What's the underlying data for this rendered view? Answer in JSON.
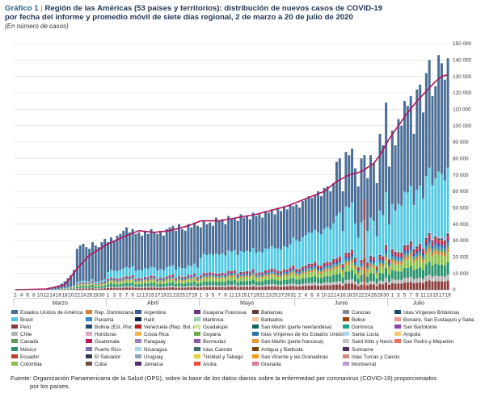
{
  "header": {
    "label": "Gráfico 1",
    "separator": "|",
    "title_line1": "Región de las Américas (53 países y territorios): distribución de nuevos casos de COVID-19",
    "title_line2": "por fecha del informe y promedio móvil de siete días regional, 2 de marzo a 20 de julio de 2020",
    "subtitle": "(En número de casos)"
  },
  "chart_data": {
    "type": "bar",
    "stacked": true,
    "title": "Región de las Américas (53 países y territorios): distribución de nuevos casos de COVID-19 por fecha del informe y promedio móvil de siete días regional, 2 de marzo a 20 de julio de 2020",
    "ylabel": "",
    "ylim": [
      0,
      150000
    ],
    "y_ticks": [
      0,
      10000,
      20000,
      30000,
      40000,
      50000,
      60000,
      70000,
      80000,
      90000,
      100000,
      110000,
      120000,
      130000,
      140000,
      150000
    ],
    "y_tick_labels": [
      "0",
      "10 000",
      "20 000",
      "30 000",
      "40 000",
      "50 000",
      "60 000",
      "70 000",
      "80 000",
      "90 000",
      "100 000",
      "110 000",
      "120 000",
      "130 000",
      "140 000",
      "150 000"
    ],
    "grid": true,
    "months": [
      {
        "label": "Marzo",
        "start": 0,
        "end": 29
      },
      {
        "label": "Abril",
        "start": 30,
        "end": 59
      },
      {
        "label": "Mayo",
        "start": 60,
        "end": 90
      },
      {
        "label": "Junio",
        "start": 91,
        "end": 120
      },
      {
        "label": "Julio",
        "start": 121,
        "end": 140
      }
    ],
    "x_tick_labels": [
      "2",
      "4",
      "6",
      "8",
      "10",
      "12",
      "14",
      "16",
      "18",
      "20",
      "22",
      "24",
      "26",
      "28",
      "30",
      "1",
      "3",
      "5",
      "7",
      "9",
      "11",
      "13",
      "15",
      "17",
      "19",
      "21",
      "23",
      "25",
      "27",
      "29",
      "1",
      "3",
      "5",
      "7",
      "9",
      "11",
      "13",
      "15",
      "17",
      "19",
      "21",
      "23",
      "25",
      "27",
      "29",
      "31",
      "2",
      "4",
      "6",
      "8",
      "10",
      "12",
      "14",
      "16",
      "18",
      "20",
      "22",
      "24",
      "26",
      "28",
      "30",
      "1",
      "3",
      "5",
      "7",
      "9",
      "11",
      "13",
      "15",
      "17",
      "19"
    ],
    "totals": [
      20,
      30,
      40,
      60,
      80,
      110,
      150,
      200,
      300,
      400,
      600,
      800,
      1200,
      1800,
      2600,
      3800,
      5200,
      7000,
      9000,
      12000,
      25000,
      27000,
      28000,
      26000,
      25000,
      29000,
      27000,
      26000,
      29000,
      31000,
      29000,
      32000,
      30000,
      33000,
      34000,
      36000,
      38000,
      35000,
      37000,
      34000,
      35000,
      33000,
      36000,
      34000,
      37000,
      35000,
      34000,
      36000,
      33000,
      37000,
      38000,
      39000,
      36000,
      40000,
      37000,
      36000,
      40000,
      38000,
      41000,
      39000,
      38000,
      42000,
      40000,
      41000,
      39000,
      44000,
      42000,
      43000,
      40000,
      45000,
      43000,
      44000,
      42000,
      46000,
      44000,
      45000,
      43000,
      47000,
      45000,
      46000,
      44000,
      48000,
      47000,
      49000,
      46000,
      50000,
      48000,
      51000,
      49000,
      52000,
      51000,
      52000,
      50000,
      54000,
      55000,
      57000,
      56000,
      58000,
      60000,
      57000,
      62000,
      63000,
      60000,
      65000,
      78000,
      80000,
      60000,
      84000,
      82000,
      86000,
      74000,
      63000,
      80000,
      82000,
      68000,
      82000,
      77000,
      65000,
      95000,
      88000,
      114000,
      75000,
      97000,
      88000,
      104000,
      100000,
      115000,
      112000,
      118000,
      95000,
      122000,
      125000,
      108000,
      132000,
      140000,
      118000,
      124000,
      143000,
      138000,
      128000,
      141000
    ],
    "annotations": {
      "cluster_near_june_23": 55000
    },
    "series": [
      {
        "name": "Estados Unidos de América",
        "color": "#4a6d96"
      },
      {
        "name": "Brasil",
        "color": "#52c9e2"
      },
      {
        "name": "Perú",
        "color": "#8a3a3a"
      },
      {
        "name": "Chile",
        "color": "#b3b3b3"
      },
      {
        "name": "Canadá",
        "color": "#5e9e5a"
      },
      {
        "name": "México",
        "color": "#27936a"
      },
      {
        "name": "Ecuador",
        "color": "#c0392b"
      },
      {
        "name": "Colombia",
        "color": "#8bc34a"
      },
      {
        "name": "Rep. Dominicana",
        "color": "#e07b39"
      },
      {
        "name": "Panamá",
        "color": "#2e86c1"
      },
      {
        "name": "Bolivia (Est. Plur. de)",
        "color": "#1f4e79"
      },
      {
        "name": "Honduras",
        "color": "#e6a3c8"
      },
      {
        "name": "Guatemala",
        "color": "#c2185b"
      },
      {
        "name": "Puerto Rico",
        "color": "#7b6fb3"
      },
      {
        "name": "El Salvador",
        "color": "#2c3e50"
      },
      {
        "name": "Cuba",
        "color": "#6d4c41"
      },
      {
        "name": "Argentina",
        "color": "#3a5ba0"
      },
      {
        "name": "Haití",
        "color": "#0b2545"
      },
      {
        "name": "Venezuela (Rep. Bol. de)",
        "color": "#b71c1c"
      },
      {
        "name": "Costa Rica",
        "color": "#f3b24b"
      },
      {
        "name": "Paraguay",
        "color": "#9c80c2"
      },
      {
        "name": "Nicaragua",
        "color": "#a7d7f0"
      },
      {
        "name": "Uruguay",
        "color": "#8fa8b8"
      },
      {
        "name": "Jamaica",
        "color": "#5b2c6f"
      },
      {
        "name": "Guayana Francesa",
        "color": "#6c3483"
      },
      {
        "name": "Martinica",
        "color": "#9ad1b0"
      },
      {
        "name": "Guadalupe",
        "color": "#d4e6a5"
      },
      {
        "name": "Guyana",
        "color": "#6aa84f"
      },
      {
        "name": "Bermudas",
        "color": "#8e5aa8"
      },
      {
        "name": "Islas Caimán",
        "color": "#3d6e70"
      },
      {
        "name": "Trinidad y Tabago",
        "color": "#e4d23a"
      },
      {
        "name": "Aruba",
        "color": "#e74c3c"
      },
      {
        "name": "Bahamas",
        "color": "#5d4037"
      },
      {
        "name": "Barbados",
        "color": "#f5c3a0"
      },
      {
        "name": "San Martín (parte neerlandesa)",
        "color": "#0e6655"
      },
      {
        "name": "Islas Vírgenes de los Estados Unidos",
        "color": "#2874a6"
      },
      {
        "name": "San Martín (parte francesa)",
        "color": "#f0932b"
      },
      {
        "name": "Antigua y Barbuda",
        "color": "#784212"
      },
      {
        "name": "San Vicente y las Granadinas",
        "color": "#f39c12"
      },
      {
        "name": "Granada",
        "color": "#e07b9a"
      },
      {
        "name": "Curazao",
        "color": "#7f8c8d"
      },
      {
        "name": "Belice",
        "color": "#a04000"
      },
      {
        "name": "Dominica",
        "color": "#17a589"
      },
      {
        "name": "Santa Lucía",
        "color": "#aed6f1"
      },
      {
        "name": "Saint Kitts y Nevis",
        "color": "#bdc3c7"
      },
      {
        "name": "Suriname",
        "color": "#512e5f"
      },
      {
        "name": "Islas Turcas y Caicos",
        "color": "#d98880"
      },
      {
        "name": "Montserrat",
        "color": "#c39bd3"
      },
      {
        "name": "Islas Vírgenes Británicas",
        "color": "#1b4f72"
      },
      {
        "name": "Bonaire, San Eustaquio y Saba",
        "color": "#f1948a"
      },
      {
        "name": "San Bartolomé",
        "color": "#8e44ad"
      },
      {
        "name": "Anguila",
        "color": "#f8c471"
      },
      {
        "name": "San Pedro y Miquelón",
        "color": "#ec7063"
      }
    ],
    "moving_average": {
      "name": "Promedio móvil de siete días",
      "color": "#b0145f",
      "points": [
        [
          0,
          0
        ],
        [
          10,
          500
        ],
        [
          16,
          3000
        ],
        [
          20,
          13000
        ],
        [
          24,
          21000
        ],
        [
          30,
          28000
        ],
        [
          36,
          33000
        ],
        [
          40,
          36000
        ],
        [
          45,
          35000
        ],
        [
          50,
          36000
        ],
        [
          56,
          39000
        ],
        [
          60,
          42000
        ],
        [
          66,
          42000
        ],
        [
          72,
          44000
        ],
        [
          78,
          46000
        ],
        [
          84,
          49000
        ],
        [
          88,
          51000
        ],
        [
          92,
          54000
        ],
        [
          96,
          57000
        ],
        [
          100,
          60000
        ],
        [
          104,
          66000
        ],
        [
          108,
          70000
        ],
        [
          112,
          72000
        ],
        [
          116,
          77000
        ],
        [
          118,
          82000
        ],
        [
          121,
          92000
        ],
        [
          124,
          100000
        ],
        [
          127,
          108000
        ],
        [
          130,
          115000
        ],
        [
          133,
          121000
        ],
        [
          136,
          127000
        ],
        [
          138,
          130000
        ],
        [
          140,
          131000
        ]
      ]
    }
  },
  "source": {
    "line1": "Fuente: Organización Panamericana de la Salud (OPS), sobre la base de los datos diarios sobre la enfermedad por coronavirus (COVID-19) proporcionados",
    "line2": "por los países."
  }
}
